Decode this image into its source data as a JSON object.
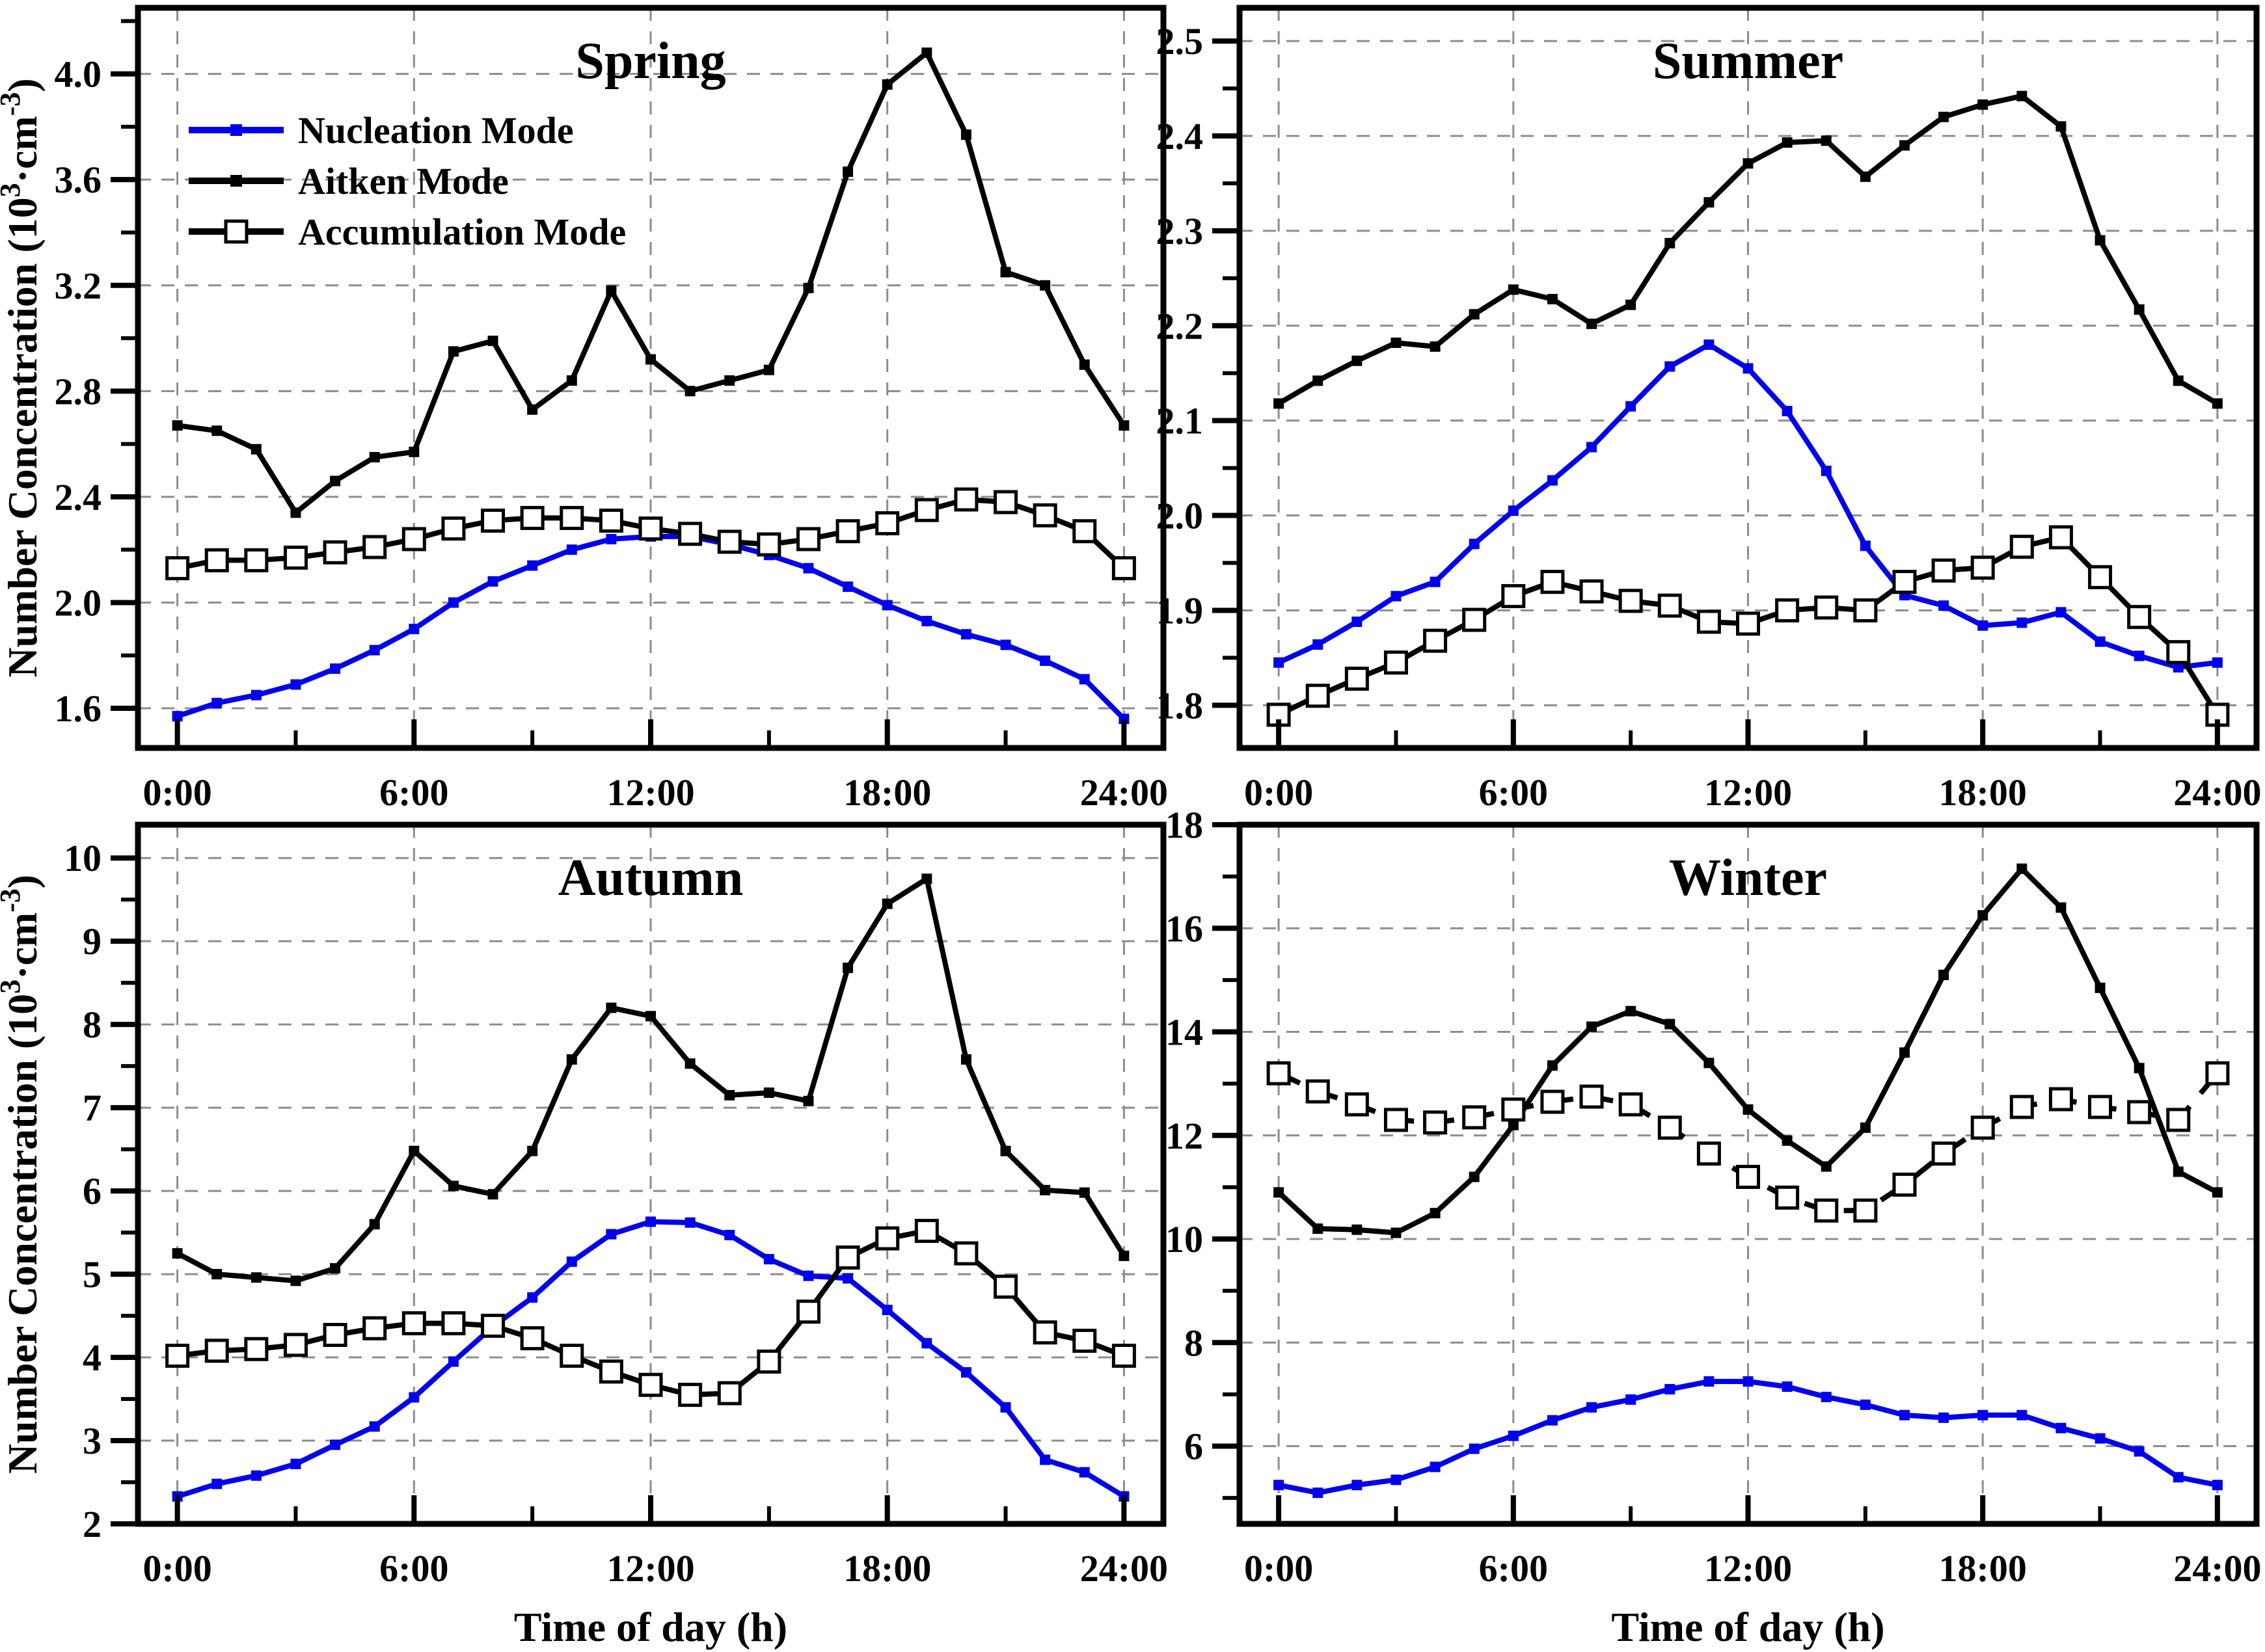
{
  "figure": {
    "background": "#FFFFFF",
    "grid_color": "#8C8C8C",
    "accent_blue": "#0000EE",
    "x_axis_label": "Time of day (h)",
    "y_axis_label_parts": [
      {
        "text": "Number Concentration (10"
      },
      {
        "text": "3",
        "sup": true
      },
      {
        "text": "·cm"
      },
      {
        "text": "-3",
        "sup": true
      },
      {
        "text": ")"
      }
    ],
    "xlim": [
      -1,
      25
    ],
    "x_minor_step": 3,
    "x_ticks": {
      "values": [
        0,
        6,
        12,
        18,
        24
      ],
      "labels": [
        "0:00",
        "6:00",
        "12:00",
        "18:00",
        "24:00"
      ]
    },
    "x_hours": [
      0,
      1,
      2,
      3,
      4,
      5,
      6,
      7,
      8,
      9,
      10,
      11,
      12,
      13,
      14,
      15,
      16,
      17,
      18,
      19,
      20,
      21,
      22,
      23,
      24
    ],
    "legend_labels": [
      "Nucleation Mode",
      "Aitken Mode",
      "Accumulation Mode"
    ]
  },
  "chart_data": [
    {
      "type": "line",
      "title": "Spring",
      "position": "top-left",
      "show_legend": true,
      "ylim": [
        1.45,
        4.25
      ],
      "y_minor_step": 0.2,
      "ytick_values": [
        1.6,
        2.0,
        2.4,
        2.8,
        3.2,
        3.6,
        4.0
      ],
      "ytick_labels": [
        "1.6",
        "2.0",
        "2.4",
        "2.8",
        "3.2",
        "3.6",
        "4.0"
      ],
      "series": [
        {
          "name": "Nucleation Mode",
          "color": "#0000EE",
          "marker": "filled-square",
          "line_style": "solid",
          "values": [
            1.57,
            1.62,
            1.65,
            1.69,
            1.75,
            1.82,
            1.9,
            2.0,
            2.08,
            2.14,
            2.2,
            2.24,
            2.25,
            2.25,
            2.22,
            2.18,
            2.13,
            2.06,
            1.99,
            1.93,
            1.88,
            1.84,
            1.78,
            1.71,
            1.56
          ]
        },
        {
          "name": "Aitken Mode",
          "color": "#000000",
          "marker": "filled-square",
          "line_style": "solid",
          "values": [
            2.67,
            2.65,
            2.58,
            2.34,
            2.46,
            2.55,
            2.57,
            2.95,
            2.99,
            2.73,
            2.84,
            3.18,
            2.92,
            2.8,
            2.84,
            2.88,
            3.19,
            3.63,
            3.96,
            4.08,
            3.77,
            3.25,
            3.2,
            2.9,
            2.67
          ]
        },
        {
          "name": "Accumulation Mode",
          "color": "#000000",
          "marker": "open-square",
          "line_style": "solid",
          "values": [
            2.13,
            2.16,
            2.16,
            2.17,
            2.19,
            2.21,
            2.24,
            2.28,
            2.31,
            2.32,
            2.32,
            2.31,
            2.28,
            2.26,
            2.23,
            2.22,
            2.24,
            2.27,
            2.3,
            2.35,
            2.39,
            2.38,
            2.33,
            2.27,
            2.13
          ]
        }
      ]
    },
    {
      "type": "line",
      "title": "Summer",
      "position": "top-right",
      "show_legend": false,
      "ylim": [
        1.755,
        2.535
      ],
      "y_minor_step": 0.05,
      "ytick_values": [
        1.8,
        1.9,
        2.0,
        2.1,
        2.2,
        2.3,
        2.4,
        2.5
      ],
      "ytick_labels": [
        "1.8",
        "1.9",
        "2.0",
        "2.1",
        "2.2",
        "2.3",
        "2.4",
        "2.5"
      ],
      "series": [
        {
          "name": "Nucleation Mode",
          "color": "#0000EE",
          "marker": "filled-square",
          "line_style": "solid",
          "values": [
            1.845,
            1.864,
            1.888,
            1.915,
            1.93,
            1.97,
            2.005,
            2.037,
            2.072,
            2.115,
            2.157,
            2.18,
            2.155,
            2.11,
            2.047,
            1.968,
            1.916,
            1.905,
            1.884,
            1.887,
            1.898,
            1.867,
            1.852,
            1.84,
            1.845
          ]
        },
        {
          "name": "Aitken Mode",
          "color": "#000000",
          "marker": "filled-square",
          "line_style": "solid",
          "values": [
            2.118,
            2.142,
            2.163,
            2.182,
            2.178,
            2.212,
            2.238,
            2.228,
            2.202,
            2.222,
            2.287,
            2.33,
            2.371,
            2.393,
            2.395,
            2.357,
            2.39,
            2.42,
            2.433,
            2.442,
            2.41,
            2.29,
            2.217,
            2.142,
            2.118
          ]
        },
        {
          "name": "Accumulation Mode",
          "color": "#000000",
          "marker": "open-square",
          "line_style": "solid",
          "values": [
            1.79,
            1.81,
            1.828,
            1.845,
            1.868,
            1.89,
            1.915,
            1.93,
            1.92,
            1.91,
            1.905,
            1.888,
            1.886,
            1.9,
            1.903,
            1.9,
            1.93,
            1.942,
            1.945,
            1.967,
            1.977,
            1.935,
            1.893,
            1.856,
            1.79
          ]
        }
      ]
    },
    {
      "type": "line",
      "title": "Autumn",
      "position": "bottom-left",
      "show_legend": false,
      "ylim": [
        2.0,
        10.4
      ],
      "y_minor_step": 0.5,
      "ytick_values": [
        2,
        3,
        4,
        5,
        6,
        7,
        8,
        9,
        10
      ],
      "ytick_labels": [
        "2",
        "3",
        "4",
        "5",
        "6",
        "7",
        "8",
        "9",
        "10"
      ],
      "series": [
        {
          "name": "Nucleation Mode",
          "color": "#0000EE",
          "marker": "filled-square",
          "line_style": "solid",
          "values": [
            2.33,
            2.48,
            2.58,
            2.72,
            2.95,
            3.17,
            3.52,
            3.95,
            4.37,
            4.72,
            5.15,
            5.48,
            5.63,
            5.62,
            5.47,
            5.18,
            4.98,
            4.95,
            4.57,
            4.17,
            3.82,
            3.4,
            2.77,
            2.62,
            2.33
          ]
        },
        {
          "name": "Aitken Mode",
          "color": "#000000",
          "marker": "filled-square",
          "line_style": "solid",
          "values": [
            5.25,
            5.0,
            4.96,
            4.92,
            5.07,
            5.6,
            6.48,
            6.06,
            5.96,
            6.48,
            7.58,
            8.2,
            8.1,
            7.53,
            7.15,
            7.18,
            7.08,
            8.68,
            9.45,
            9.75,
            7.58,
            6.48,
            6.01,
            5.98,
            5.22
          ]
        },
        {
          "name": "Accumulation Mode",
          "color": "#000000",
          "marker": "open-square",
          "line_style": "solid",
          "values": [
            4.02,
            4.08,
            4.1,
            4.15,
            4.27,
            4.35,
            4.41,
            4.41,
            4.38,
            4.23,
            4.02,
            3.83,
            3.67,
            3.55,
            3.57,
            3.95,
            4.55,
            5.2,
            5.43,
            5.52,
            5.25,
            4.85,
            4.3,
            4.2,
            4.02
          ]
        }
      ]
    },
    {
      "type": "line",
      "title": "Winter",
      "position": "bottom-right",
      "show_legend": false,
      "ylim": [
        4.5,
        18.0
      ],
      "y_minor_step": 1,
      "ytick_values": [
        6,
        8,
        10,
        12,
        14,
        16,
        18
      ],
      "ytick_labels": [
        "6",
        "8",
        "10",
        "12",
        "14",
        "16",
        "18"
      ],
      "series": [
        {
          "name": "Nucleation Mode",
          "color": "#0000EE",
          "marker": "filled-square",
          "line_style": "solid",
          "values": [
            5.25,
            5.1,
            5.25,
            5.35,
            5.6,
            5.95,
            6.2,
            6.5,
            6.75,
            6.9,
            7.1,
            7.25,
            7.25,
            7.15,
            6.95,
            6.8,
            6.6,
            6.55,
            6.6,
            6.6,
            6.35,
            6.15,
            5.9,
            5.4,
            5.25
          ]
        },
        {
          "name": "Aitken Mode",
          "color": "#000000",
          "marker": "filled-square",
          "line_style": "solid",
          "values": [
            10.9,
            10.2,
            10.18,
            10.12,
            10.5,
            11.2,
            12.2,
            13.35,
            14.1,
            14.4,
            14.15,
            13.4,
            12.5,
            11.9,
            11.4,
            12.15,
            13.6,
            15.1,
            16.25,
            17.15,
            16.4,
            14.85,
            13.3,
            11.3,
            10.9
          ]
        },
        {
          "name": "Accumulation Mode",
          "color": "#000000",
          "marker": "open-square",
          "line_style": "dashed",
          "values": [
            13.2,
            12.85,
            12.6,
            12.3,
            12.25,
            12.35,
            12.5,
            12.65,
            12.75,
            12.6,
            12.15,
            11.65,
            11.2,
            10.8,
            10.55,
            10.55,
            11.05,
            11.65,
            12.15,
            12.55,
            12.7,
            12.55,
            12.45,
            12.3,
            13.2
          ]
        }
      ]
    }
  ]
}
